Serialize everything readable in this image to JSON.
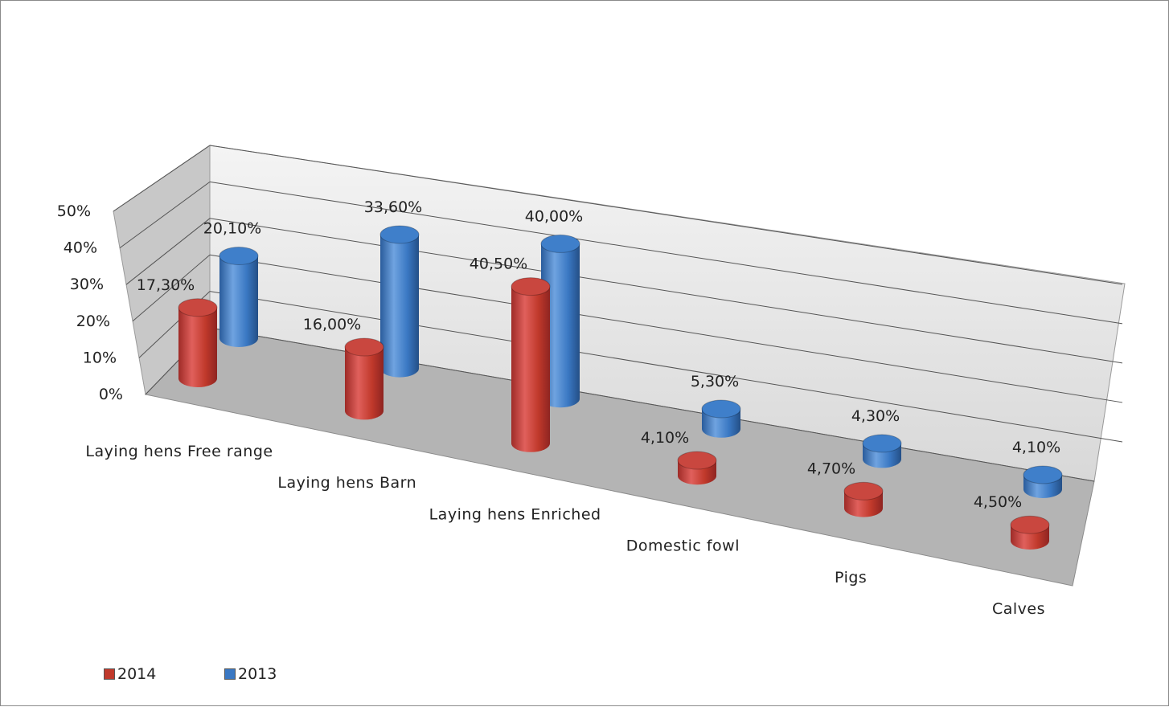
{
  "chart_data": {
    "type": "bar",
    "categories": [
      "Laying hens Free range",
      "Laying hens Barn",
      "Laying hens Enriched",
      "Domestic fowl",
      "Pigs",
      "Calves"
    ],
    "series": [
      {
        "name": "2014",
        "values": [
          17.3,
          16.0,
          40.5,
          4.1,
          4.7,
          4.5
        ],
        "labels": [
          "17,30%",
          "16,00%",
          "40,50%",
          "4,10%",
          "4,70%",
          "4,50%"
        ],
        "color": "#c0392b"
      },
      {
        "name": "2013",
        "values": [
          20.1,
          33.6,
          40.0,
          5.3,
          4.3,
          4.1
        ],
        "labels": [
          "20,10%",
          "33,60%",
          "40,00%",
          "5,30%",
          "4,30%",
          "4,10%"
        ],
        "color": "#3a78c3"
      }
    ],
    "y_ticks": [
      "0%",
      "10%",
      "20%",
      "30%",
      "40%",
      "50%"
    ],
    "ylim": [
      0,
      50
    ],
    "grid": true,
    "legend_position": "bottom-left",
    "style": "3d-cylinder"
  }
}
